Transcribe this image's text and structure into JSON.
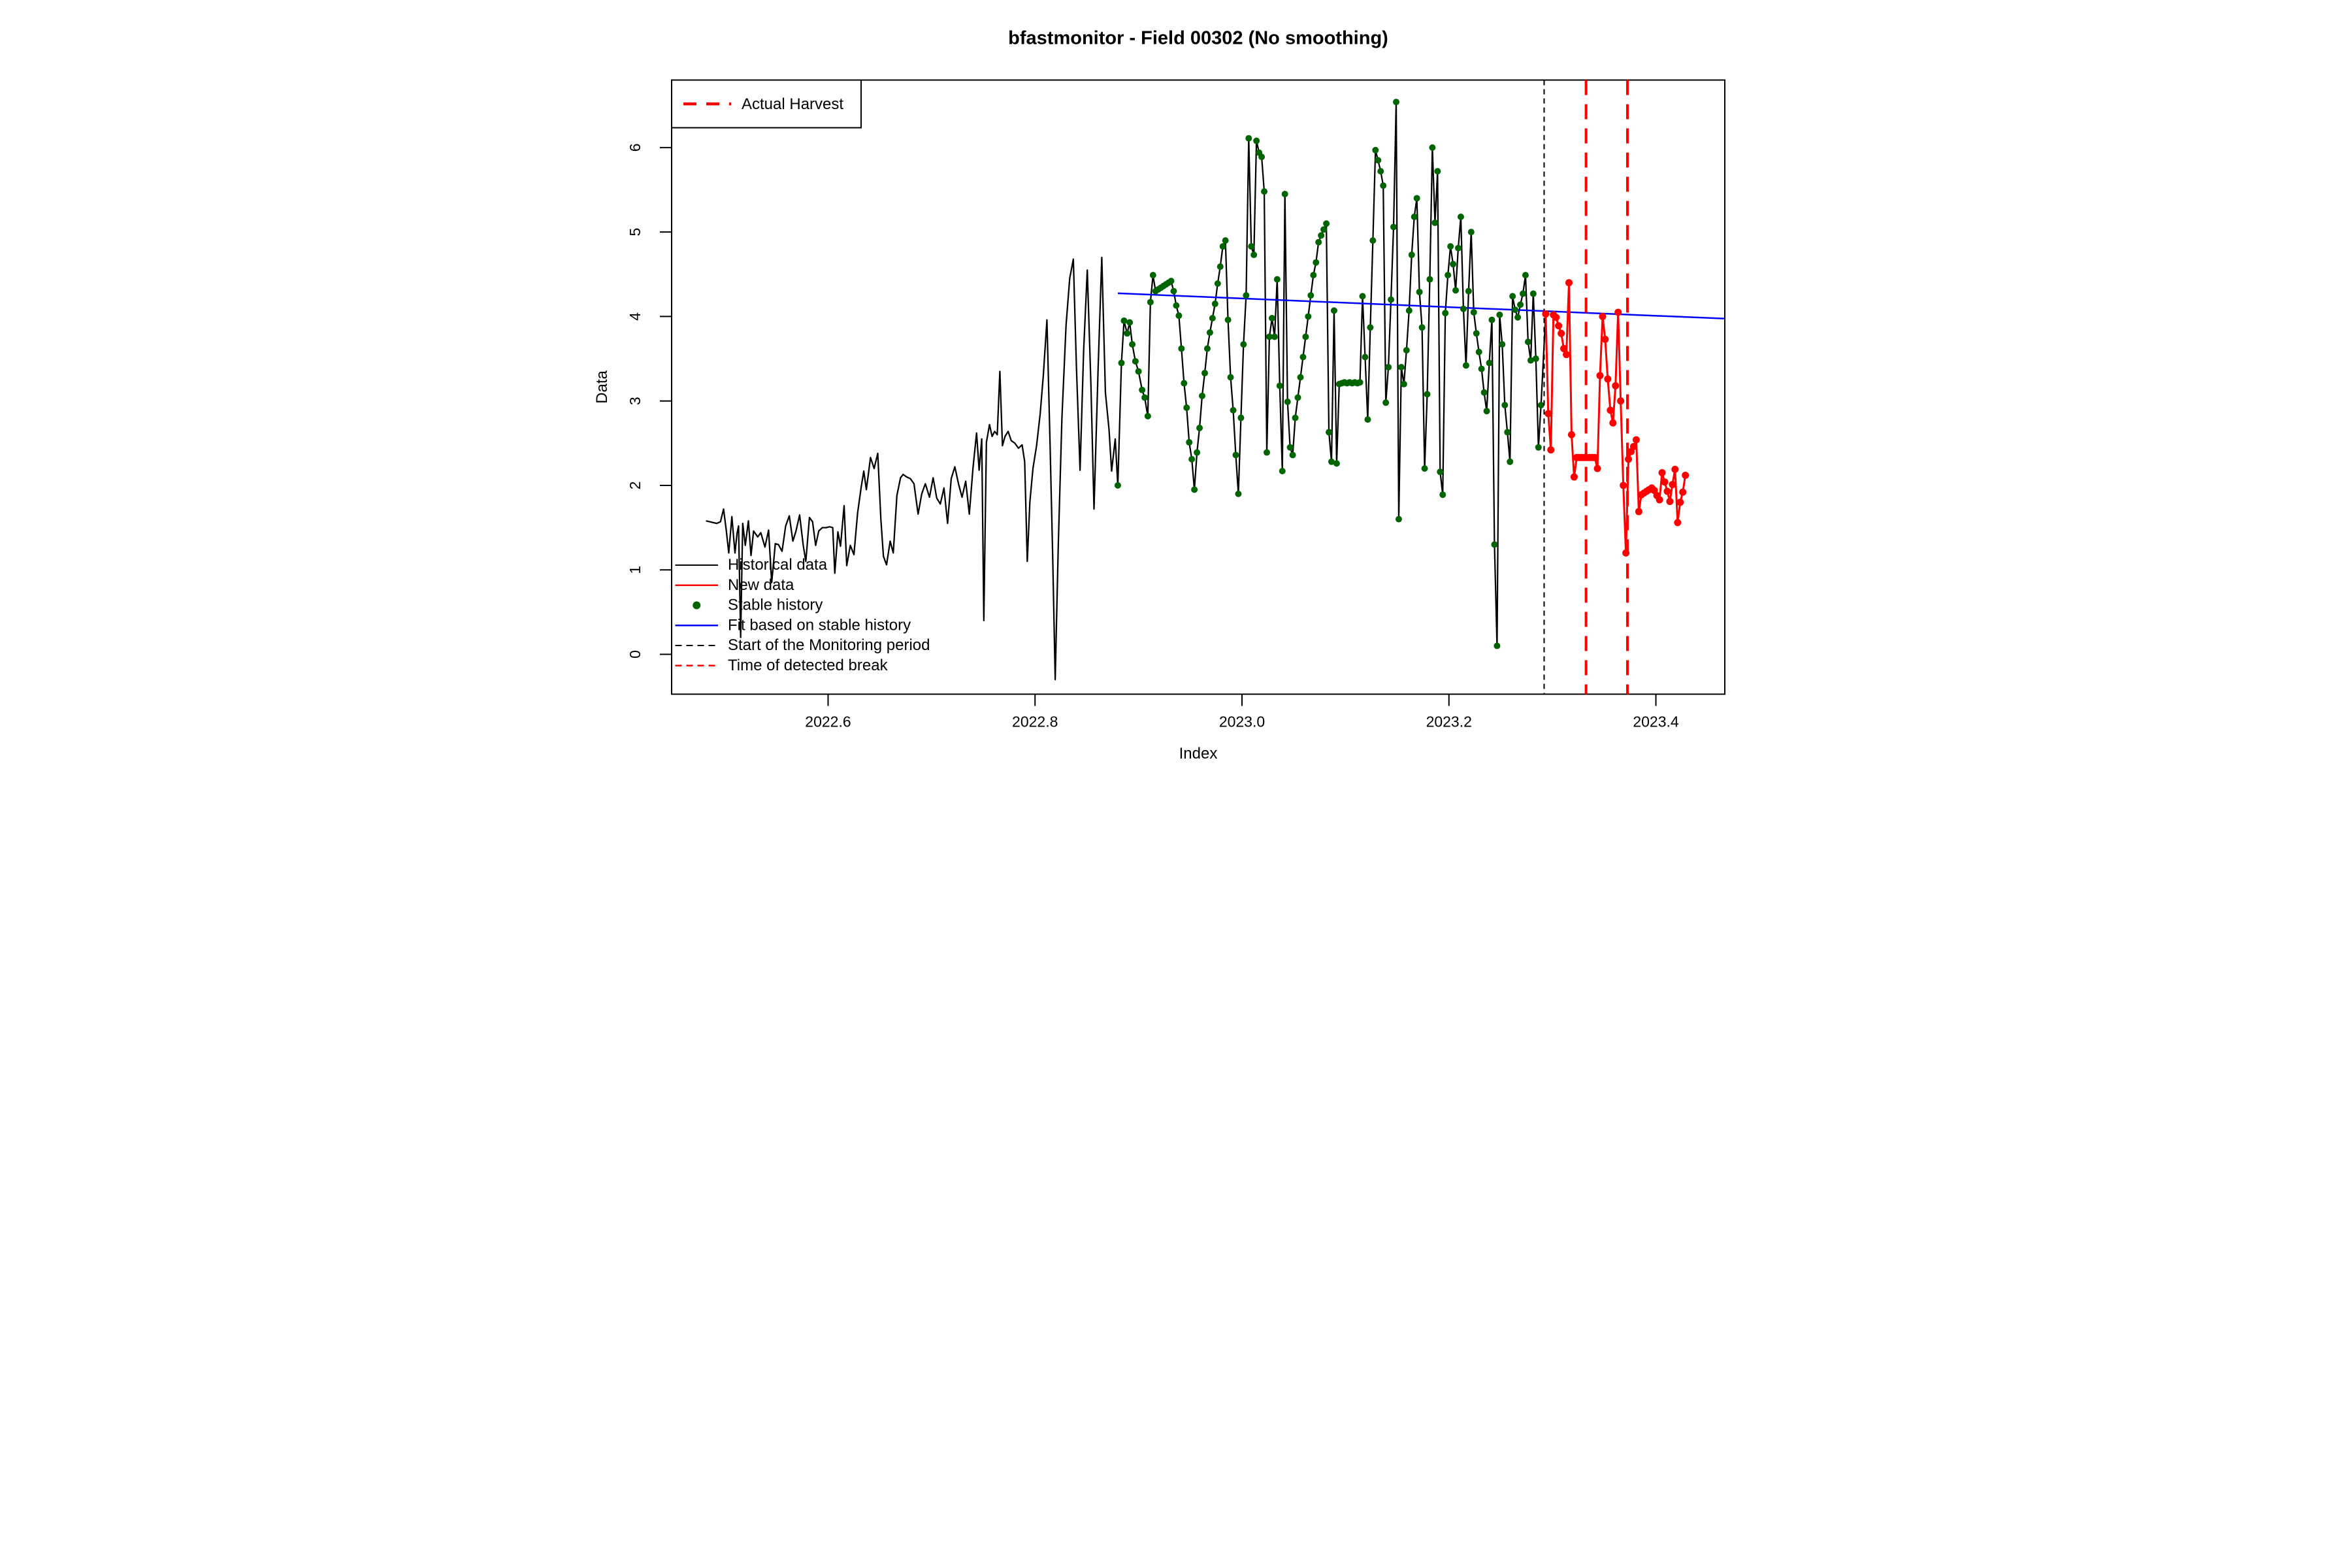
{
  "title": "bfastmonitor - Field 00302 (No smoothing)",
  "colors": {
    "background": "#ffffff",
    "historical": "#000000",
    "new_data": "#ff0000",
    "stable_dot": "#006400",
    "fit": "#0000ff",
    "monitor_start": "#000000",
    "break_line": "#ff0000",
    "axis": "#000000"
  },
  "top_legend": {
    "label": "Actual Harvest"
  },
  "bottom_legend": [
    {
      "label": "Historical data",
      "style": "black-solid"
    },
    {
      "label": "New data",
      "style": "red-solid"
    },
    {
      "label": "Stable history",
      "style": "green-dot"
    },
    {
      "label": "Fit based on stable history",
      "style": "blue-solid"
    },
    {
      "label": "Start of the Monitoring period",
      "style": "black-dashed"
    },
    {
      "label": "Time of detected break",
      "style": "red-dashed"
    }
  ],
  "chart_data": {
    "type": "line",
    "title": "bfastmonitor - Field 00302 (No smoothing)",
    "xlabel": "Index",
    "ylabel": "Data",
    "xlim": [
      2022.4488,
      2023.4666
    ],
    "ylim": [
      -0.472,
      6.8
    ],
    "x_ticks": [
      2022.6,
      2022.8,
      2023.0,
      2023.2,
      2023.4
    ],
    "y_ticks": [
      0,
      1,
      2,
      3,
      4,
      5,
      6
    ],
    "grid": false,
    "monitor_start": 2023.292,
    "detected_break": 2023.3325,
    "actual_harvest": 2023.3725,
    "stable_range": [
      2022.878,
      2023.291
    ],
    "fit_line": [
      [
        2022.88,
        4.275
      ],
      [
        2023.466,
        3.975
      ]
    ],
    "historical": [
      [
        2022.482,
        1.58
      ],
      [
        2022.4855,
        1.57
      ],
      [
        2022.489,
        1.56
      ],
      [
        2022.4925,
        1.55
      ],
      [
        2022.496,
        1.57
      ],
      [
        2022.499,
        1.72
      ],
      [
        2022.5015,
        1.48
      ],
      [
        2022.504,
        1.2
      ],
      [
        2022.507,
        1.63
      ],
      [
        2022.51,
        1.2
      ],
      [
        2022.512,
        1.43
      ],
      [
        2022.5135,
        1.52
      ],
      [
        2022.5155,
        0.2
      ],
      [
        2022.5175,
        1.55
      ],
      [
        2022.52,
        1.29
      ],
      [
        2022.523,
        1.58
      ],
      [
        2022.5255,
        1.17
      ],
      [
        2022.528,
        1.46
      ],
      [
        2022.532,
        1.39
      ],
      [
        2022.535,
        1.44
      ],
      [
        2022.539,
        1.27
      ],
      [
        2022.5425,
        1.47
      ],
      [
        2022.5455,
        0.85
      ],
      [
        2022.549,
        1.31
      ],
      [
        2022.552,
        1.3
      ],
      [
        2022.5555,
        1.22
      ],
      [
        2022.559,
        1.52
      ],
      [
        2022.5625,
        1.64
      ],
      [
        2022.566,
        1.34
      ],
      [
        2022.569,
        1.46
      ],
      [
        2022.5725,
        1.65
      ],
      [
        2022.576,
        1.29
      ],
      [
        2022.5785,
        1.1
      ],
      [
        2022.582,
        1.62
      ],
      [
        2022.585,
        1.57
      ],
      [
        2022.588,
        1.29
      ],
      [
        2022.591,
        1.46
      ],
      [
        2022.5945,
        1.5
      ],
      [
        2022.598,
        1.5
      ],
      [
        2022.6015,
        1.51
      ],
      [
        2022.6045,
        1.5
      ],
      [
        2022.6065,
        0.96
      ],
      [
        2022.6095,
        1.45
      ],
      [
        2022.612,
        1.28
      ],
      [
        2022.6155,
        1.76
      ],
      [
        2022.618,
        1.05
      ],
      [
        2022.6215,
        1.29
      ],
      [
        2022.625,
        1.18
      ],
      [
        2022.6285,
        1.67
      ],
      [
        2022.632,
        1.98
      ],
      [
        2022.6345,
        2.17
      ],
      [
        2022.637,
        1.95
      ],
      [
        2022.641,
        2.33
      ],
      [
        2022.6445,
        2.2
      ],
      [
        2022.648,
        2.38
      ],
      [
        2022.651,
        1.6
      ],
      [
        2022.6535,
        1.16
      ],
      [
        2022.6565,
        1.06
      ],
      [
        2022.66,
        1.34
      ],
      [
        2022.663,
        1.2
      ],
      [
        2022.6665,
        1.88
      ],
      [
        2022.67,
        2.09
      ],
      [
        2022.6725,
        2.13
      ],
      [
        2022.676,
        2.1
      ],
      [
        2022.6795,
        2.08
      ],
      [
        2022.683,
        2.02
      ],
      [
        2022.687,
        1.66
      ],
      [
        2022.6905,
        1.9
      ],
      [
        2022.694,
        2.02
      ],
      [
        2022.698,
        1.86
      ],
      [
        2022.7015,
        2.09
      ],
      [
        2022.705,
        1.85
      ],
      [
        2022.7085,
        1.78
      ],
      [
        2022.712,
        1.97
      ],
      [
        2022.7155,
        1.55
      ],
      [
        2022.719,
        2.08
      ],
      [
        2022.7225,
        2.22
      ],
      [
        2022.726,
        2.02
      ],
      [
        2022.7295,
        1.86
      ],
      [
        2022.733,
        2.05
      ],
      [
        2022.7365,
        1.66
      ],
      [
        2022.74,
        2.2
      ],
      [
        2022.7435,
        2.62
      ],
      [
        2022.746,
        2.18
      ],
      [
        2022.7485,
        2.55
      ],
      [
        2022.7505,
        0.4
      ],
      [
        2022.753,
        2.51
      ],
      [
        2022.756,
        2.72
      ],
      [
        2022.7585,
        2.58
      ],
      [
        2022.761,
        2.64
      ],
      [
        2022.7635,
        2.6
      ],
      [
        2022.766,
        3.35
      ],
      [
        2022.7685,
        2.47
      ],
      [
        2022.771,
        2.58
      ],
      [
        2022.774,
        2.64
      ],
      [
        2022.777,
        2.53
      ],
      [
        2022.7805,
        2.5
      ],
      [
        2022.784,
        2.44
      ],
      [
        2022.7875,
        2.48
      ],
      [
        2022.79,
        2.28
      ],
      [
        2022.7925,
        1.1
      ],
      [
        2022.795,
        1.8
      ],
      [
        2022.798,
        2.2
      ],
      [
        2022.8015,
        2.47
      ],
      [
        2022.805,
        2.85
      ],
      [
        2022.808,
        3.3
      ],
      [
        2022.8115,
        3.96
      ],
      [
        2022.8145,
        2.5
      ],
      [
        2022.817,
        1.2
      ],
      [
        2022.8195,
        -0.3
      ],
      [
        2022.8225,
        1.3
      ],
      [
        2022.826,
        2.8
      ],
      [
        2022.83,
        3.9
      ],
      [
        2022.8335,
        4.45
      ],
      [
        2022.837,
        4.68
      ],
      [
        2022.84,
        3.4
      ],
      [
        2022.8435,
        2.18
      ],
      [
        2022.847,
        3.6
      ],
      [
        2022.8505,
        4.55
      ],
      [
        2022.854,
        3.2
      ],
      [
        2022.857,
        1.72
      ],
      [
        2022.861,
        3.4
      ],
      [
        2022.8645,
        4.7
      ],
      [
        2022.868,
        3.1
      ],
      [
        2022.8715,
        2.66
      ],
      [
        2022.874,
        2.17
      ],
      [
        2022.8775,
        2.55
      ],
      [
        2022.88,
        2.0
      ],
      [
        2022.8835,
        3.45
      ],
      [
        2022.886,
        3.95
      ],
      [
        2022.889,
        3.8
      ],
      [
        2022.8915,
        3.93
      ],
      [
        2022.894,
        3.67
      ],
      [
        2022.897,
        3.47
      ],
      [
        2022.9,
        3.35
      ],
      [
        2022.9035,
        3.13
      ],
      [
        2022.906,
        3.04
      ],
      [
        2022.909,
        2.82
      ],
      [
        2022.9115,
        4.17
      ],
      [
        2022.914,
        4.49
      ],
      [
        2022.9165,
        4.3
      ],
      [
        2022.919,
        4.32
      ],
      [
        2022.9215,
        4.34
      ],
      [
        2022.924,
        4.36
      ],
      [
        2022.9265,
        4.38
      ],
      [
        2022.929,
        4.4
      ],
      [
        2022.9315,
        4.42
      ],
      [
        2022.934,
        4.3
      ],
      [
        2022.9365,
        4.13
      ],
      [
        2022.939,
        4.01
      ],
      [
        2022.9415,
        3.62
      ],
      [
        2022.944,
        3.21
      ],
      [
        2022.9465,
        2.92
      ],
      [
        2022.949,
        2.51
      ],
      [
        2022.9515,
        2.31
      ],
      [
        2022.954,
        1.95
      ],
      [
        2022.9565,
        2.39
      ],
      [
        2022.959,
        2.68
      ],
      [
        2022.9615,
        3.06
      ],
      [
        2022.964,
        3.33
      ],
      [
        2022.9665,
        3.62
      ],
      [
        2022.969,
        3.81
      ],
      [
        2022.9715,
        3.98
      ],
      [
        2022.974,
        4.15
      ],
      [
        2022.9765,
        4.39
      ],
      [
        2022.979,
        4.59
      ],
      [
        2022.9815,
        4.83
      ],
      [
        2022.984,
        4.9
      ],
      [
        2022.9865,
        3.96
      ],
      [
        2022.989,
        3.28
      ],
      [
        2022.9915,
        2.89
      ],
      [
        2022.994,
        2.36
      ],
      [
        2022.9965,
        1.9
      ],
      [
        2022.999,
        2.8
      ],
      [
        2023.0015,
        3.67
      ],
      [
        2023.004,
        4.25
      ],
      [
        2023.0065,
        6.11
      ],
      [
        2023.009,
        4.83
      ],
      [
        2023.0115,
        4.73
      ],
      [
        2023.014,
        6.08
      ],
      [
        2023.0165,
        5.94
      ],
      [
        2023.019,
        5.89
      ],
      [
        2023.0215,
        5.48
      ],
      [
        2023.024,
        2.39
      ],
      [
        2023.0265,
        3.76
      ],
      [
        2023.029,
        3.98
      ],
      [
        2023.0315,
        3.76
      ],
      [
        2023.034,
        4.44
      ],
      [
        2023.0365,
        3.18
      ],
      [
        2023.039,
        2.17
      ],
      [
        2023.0415,
        5.45
      ],
      [
        2023.044,
        2.99
      ],
      [
        2023.0465,
        2.45
      ],
      [
        2023.049,
        2.36
      ],
      [
        2023.0515,
        2.8
      ],
      [
        2023.054,
        3.04
      ],
      [
        2023.0565,
        3.28
      ],
      [
        2023.059,
        3.52
      ],
      [
        2023.0615,
        3.76
      ],
      [
        2023.064,
        4.0
      ],
      [
        2023.0665,
        4.25
      ],
      [
        2023.069,
        4.49
      ],
      [
        2023.0715,
        4.64
      ],
      [
        2023.074,
        4.88
      ],
      [
        2023.0765,
        4.96
      ],
      [
        2023.079,
        5.03
      ],
      [
        2023.0815,
        5.1
      ],
      [
        2023.084,
        2.63
      ],
      [
        2023.0865,
        2.28
      ],
      [
        2023.089,
        4.07
      ],
      [
        2023.0915,
        2.26
      ],
      [
        2023.094,
        3.2
      ],
      [
        2023.0965,
        3.21
      ],
      [
        2023.099,
        3.22
      ],
      [
        2023.1015,
        3.21
      ],
      [
        2023.104,
        3.22
      ],
      [
        2023.1065,
        3.21
      ],
      [
        2023.109,
        3.22
      ],
      [
        2023.1115,
        3.21
      ],
      [
        2023.114,
        3.22
      ],
      [
        2023.1165,
        4.24
      ],
      [
        2023.119,
        3.52
      ],
      [
        2023.1215,
        2.78
      ],
      [
        2023.124,
        3.87
      ],
      [
        2023.1265,
        4.9
      ],
      [
        2023.129,
        5.97
      ],
      [
        2023.1315,
        5.85
      ],
      [
        2023.134,
        5.72
      ],
      [
        2023.1365,
        5.55
      ],
      [
        2023.139,
        2.98
      ],
      [
        2023.1415,
        3.4
      ],
      [
        2023.144,
        4.2
      ],
      [
        2023.1465,
        5.06
      ],
      [
        2023.149,
        6.54
      ],
      [
        2023.1515,
        1.6
      ],
      [
        2023.154,
        3.4
      ],
      [
        2023.1565,
        3.2
      ],
      [
        2023.159,
        3.6
      ],
      [
        2023.1615,
        4.07
      ],
      [
        2023.164,
        4.73
      ],
      [
        2023.1665,
        5.18
      ],
      [
        2023.169,
        5.4
      ],
      [
        2023.1715,
        4.29
      ],
      [
        2023.174,
        3.87
      ],
      [
        2023.1765,
        2.2
      ],
      [
        2023.179,
        3.08
      ],
      [
        2023.1815,
        4.44
      ],
      [
        2023.184,
        6.0
      ],
      [
        2023.1865,
        5.11
      ],
      [
        2023.189,
        5.72
      ],
      [
        2023.1915,
        2.16
      ],
      [
        2023.194,
        1.89
      ],
      [
        2023.1965,
        4.04
      ],
      [
        2023.199,
        4.49
      ],
      [
        2023.2015,
        4.83
      ],
      [
        2023.204,
        4.62
      ],
      [
        2023.2065,
        4.31
      ],
      [
        2023.209,
        4.81
      ],
      [
        2023.2115,
        5.18
      ],
      [
        2023.214,
        4.09
      ],
      [
        2023.2165,
        3.42
      ],
      [
        2023.219,
        4.3
      ],
      [
        2023.2215,
        5.0
      ],
      [
        2023.224,
        4.05
      ],
      [
        2023.2265,
        3.8
      ],
      [
        2023.229,
        3.58
      ],
      [
        2023.2315,
        3.38
      ],
      [
        2023.234,
        3.1
      ],
      [
        2023.2365,
        2.88
      ],
      [
        2023.239,
        3.45
      ],
      [
        2023.2415,
        3.96
      ],
      [
        2023.244,
        1.3
      ],
      [
        2023.2465,
        0.1
      ],
      [
        2023.249,
        4.02
      ],
      [
        2023.2515,
        3.67
      ],
      [
        2023.254,
        2.95
      ],
      [
        2023.2565,
        2.63
      ],
      [
        2023.259,
        2.28
      ],
      [
        2023.2615,
        4.24
      ],
      [
        2023.264,
        4.08
      ],
      [
        2023.2665,
        3.99
      ],
      [
        2023.269,
        4.14
      ],
      [
        2023.2715,
        4.27
      ],
      [
        2023.274,
        4.49
      ],
      [
        2023.2765,
        3.7
      ],
      [
        2023.279,
        3.48
      ],
      [
        2023.2815,
        4.27
      ],
      [
        2023.284,
        3.5
      ],
      [
        2023.2865,
        2.45
      ],
      [
        2023.289,
        2.95
      ],
      [
        2023.2935,
        4.03
      ]
    ],
    "new_data": [
      [
        2023.2935,
        4.03
      ],
      [
        2023.296,
        2.85
      ],
      [
        2023.2985,
        2.42
      ],
      [
        2023.301,
        4.02
      ],
      [
        2023.3035,
        3.99
      ],
      [
        2023.306,
        3.89
      ],
      [
        2023.3085,
        3.8
      ],
      [
        2023.311,
        3.62
      ],
      [
        2023.3135,
        3.55
      ],
      [
        2023.316,
        4.4
      ],
      [
        2023.3185,
        2.6
      ],
      [
        2023.321,
        2.1
      ],
      [
        2023.3235,
        2.33
      ],
      [
        2023.326,
        2.33
      ],
      [
        2023.3285,
        2.33
      ],
      [
        2023.331,
        2.33
      ],
      [
        2023.3335,
        2.33
      ],
      [
        2023.336,
        2.33
      ],
      [
        2023.3385,
        2.33
      ],
      [
        2023.341,
        2.33
      ],
      [
        2023.3435,
        2.2
      ],
      [
        2023.346,
        3.3
      ],
      [
        2023.3485,
        4.0
      ],
      [
        2023.351,
        3.73
      ],
      [
        2023.3535,
        3.26
      ],
      [
        2023.356,
        2.89
      ],
      [
        2023.3585,
        2.74
      ],
      [
        2023.361,
        3.18
      ],
      [
        2023.3635,
        4.05
      ],
      [
        2023.366,
        3.0
      ],
      [
        2023.3685,
        2.0
      ],
      [
        2023.371,
        1.2
      ],
      [
        2023.3735,
        2.31
      ],
      [
        2023.376,
        2.4
      ],
      [
        2023.3785,
        2.46
      ],
      [
        2023.381,
        2.54
      ],
      [
        2023.3835,
        1.69
      ],
      [
        2023.386,
        1.89
      ],
      [
        2023.3885,
        1.91
      ],
      [
        2023.391,
        1.93
      ],
      [
        2023.3935,
        1.95
      ],
      [
        2023.396,
        1.97
      ],
      [
        2023.3985,
        1.94
      ],
      [
        2023.401,
        1.88
      ],
      [
        2023.4035,
        1.83
      ],
      [
        2023.406,
        2.15
      ],
      [
        2023.4085,
        2.04
      ],
      [
        2023.411,
        1.93
      ],
      [
        2023.4135,
        1.81
      ],
      [
        2023.416,
        2.01
      ],
      [
        2023.4185,
        2.19
      ],
      [
        2023.421,
        1.56
      ],
      [
        2023.4235,
        1.8
      ],
      [
        2023.426,
        1.92
      ],
      [
        2023.4285,
        2.12
      ]
    ]
  }
}
